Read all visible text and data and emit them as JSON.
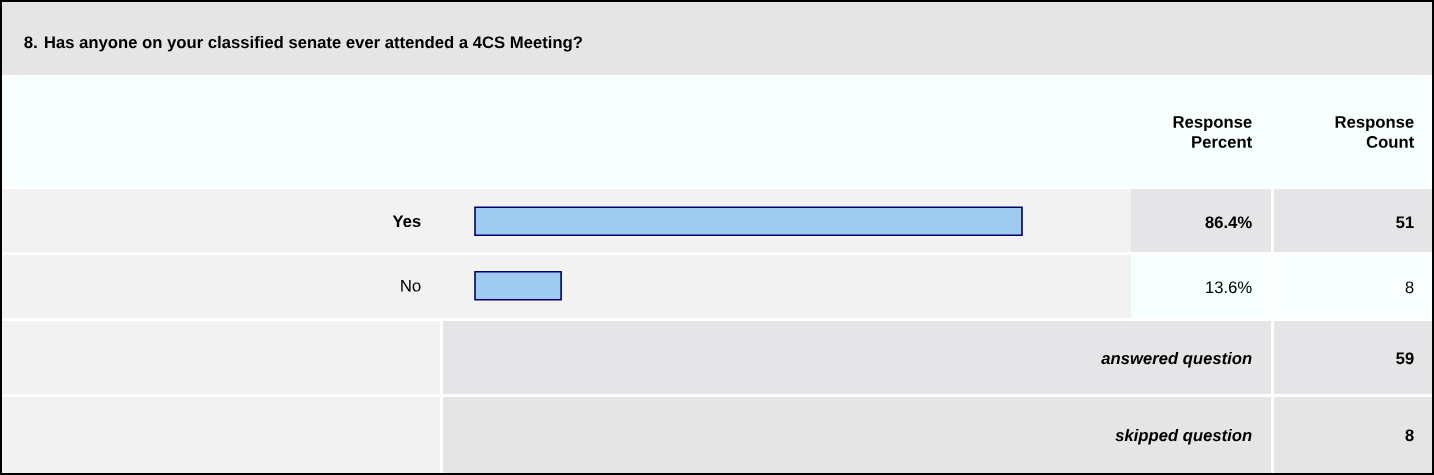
{
  "chart_data": {
    "type": "bar",
    "orientation": "horizontal",
    "title": "8. Has anyone on your classified senate ever attended a 4CS Meeting?",
    "categories": [
      "Yes",
      "No"
    ],
    "values": [
      86.4,
      13.6
    ],
    "value_labels": [
      "86.4%",
      "13.6%"
    ],
    "color": "#9ecbef",
    "tick_labels": "y",
    "annotations": [
      "Response Percent",
      "Response Count",
      "51",
      "8",
      "answered question",
      "59",
      "skipped question",
      "8"
    ]
  }
}
